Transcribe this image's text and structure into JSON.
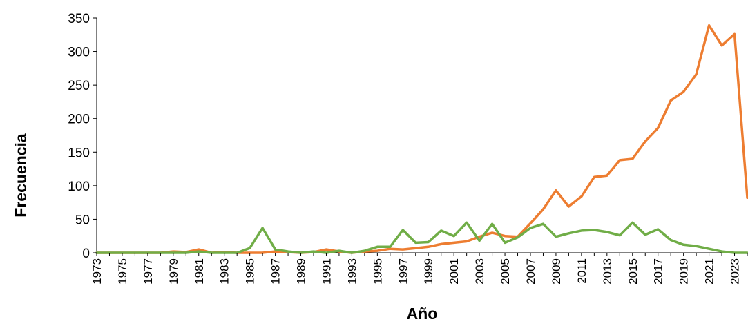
{
  "chart_data": {
    "type": "line",
    "xlabel": "Año",
    "ylabel": "Frecuencia",
    "ylim": [
      0,
      350
    ],
    "yticks": [
      "0",
      "50",
      "100",
      "150",
      "200",
      "250",
      "300",
      "350"
    ],
    "x": [
      1973,
      1974,
      1975,
      1976,
      1977,
      1978,
      1979,
      1980,
      1981,
      1982,
      1983,
      1984,
      1985,
      1986,
      1987,
      1988,
      1989,
      1990,
      1991,
      1992,
      1993,
      1994,
      1995,
      1996,
      1997,
      1998,
      1999,
      2000,
      2001,
      2002,
      2003,
      2004,
      2005,
      2006,
      2007,
      2008,
      2009,
      2010,
      2011,
      2012,
      2013,
      2014,
      2015,
      2016,
      2017,
      2018,
      2019,
      2020,
      2021,
      2022,
      2023,
      2024
    ],
    "xtick_labels": [
      "1973",
      "1975",
      "1977",
      "1979",
      "1981",
      "1983",
      "1985",
      "1987",
      "1989",
      "1991",
      "1993",
      "1995",
      "1997",
      "1999",
      "2001",
      "2003",
      "2005",
      "2007",
      "2009",
      "2011",
      "2013",
      "2015",
      "2017",
      "2019",
      "2021",
      "2023"
    ],
    "grid": false,
    "series": [
      {
        "color": "#ed7d31",
        "values": [
          0,
          0,
          0,
          0,
          0,
          0,
          2,
          1,
          5,
          0,
          1,
          0,
          0,
          0,
          2,
          1,
          0,
          1,
          5,
          2,
          0,
          2,
          3,
          6,
          5,
          7,
          9,
          13,
          15,
          17,
          24,
          30,
          25,
          24,
          44,
          65,
          93,
          69,
          84,
          113,
          115,
          138,
          140,
          166,
          186,
          227,
          240,
          266,
          339,
          309,
          326,
          82
        ]
      },
      {
        "color": "#70ad47",
        "values": [
          0,
          0,
          0,
          0,
          0,
          0,
          0,
          0,
          2,
          0,
          0,
          0,
          7,
          37,
          5,
          2,
          0,
          2,
          0,
          3,
          0,
          3,
          9,
          9,
          34,
          15,
          16,
          33,
          25,
          45,
          18,
          43,
          15,
          23,
          37,
          43,
          24,
          29,
          33,
          34,
          31,
          26,
          45,
          27,
          35,
          19,
          12,
          10,
          6,
          2,
          0,
          0
        ]
      }
    ]
  }
}
